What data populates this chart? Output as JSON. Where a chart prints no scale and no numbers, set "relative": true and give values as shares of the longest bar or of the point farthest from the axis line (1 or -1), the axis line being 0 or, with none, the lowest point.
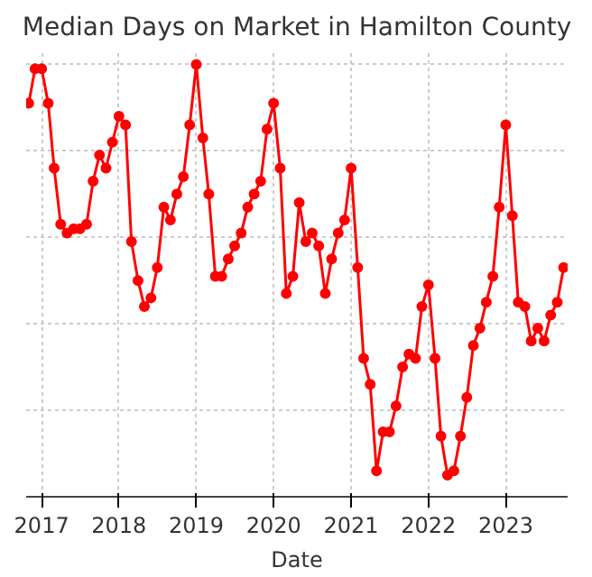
{
  "chart_data": {
    "type": "line",
    "title": "Median Days on Market in Hamilton County",
    "xlabel": "Date",
    "relative": true,
    "x": [
      "2016-11",
      "2016-12",
      "2017-01",
      "2017-02",
      "2017-03",
      "2017-04",
      "2017-05",
      "2017-06",
      "2017-07",
      "2017-08",
      "2017-09",
      "2017-10",
      "2017-11",
      "2017-12",
      "2018-01",
      "2018-02",
      "2018-03",
      "2018-04",
      "2018-05",
      "2018-06",
      "2018-07",
      "2018-08",
      "2018-09",
      "2018-10",
      "2018-11",
      "2018-12",
      "2019-01",
      "2019-02",
      "2019-03",
      "2019-04",
      "2019-05",
      "2019-06",
      "2019-07",
      "2019-08",
      "2019-09",
      "2019-10",
      "2019-11",
      "2019-12",
      "2020-01",
      "2020-02",
      "2020-03",
      "2020-04",
      "2020-05",
      "2020-06",
      "2020-07",
      "2020-08",
      "2020-09",
      "2020-10",
      "2020-11",
      "2020-12",
      "2021-01",
      "2021-02",
      "2021-03",
      "2021-04",
      "2021-05",
      "2021-06",
      "2021-07",
      "2021-08",
      "2021-09",
      "2021-10",
      "2021-11",
      "2021-12",
      "2022-01",
      "2022-02",
      "2022-03",
      "2022-04",
      "2022-05",
      "2022-06",
      "2022-07",
      "2022-08",
      "2022-09",
      "2022-10",
      "2022-11",
      "2022-12",
      "2023-01",
      "2023-02",
      "2023-03",
      "2023-04",
      "2023-05",
      "2023-06",
      "2023-07",
      "2023-08",
      "2023-09",
      "2023-10"
    ],
    "series": [
      {
        "color": "#ff0000",
        "values": [
          0.91,
          0.99,
          0.99,
          0.91,
          0.76,
          0.63,
          0.61,
          0.62,
          0.62,
          0.63,
          0.73,
          0.79,
          0.76,
          0.82,
          0.88,
          0.86,
          0.59,
          0.5,
          0.44,
          0.46,
          0.53,
          0.67,
          0.64,
          0.7,
          0.74,
          0.86,
          1,
          0.83,
          0.7,
          0.51,
          0.51,
          0.55,
          0.58,
          0.61,
          0.67,
          0.7,
          0.73,
          0.85,
          0.91,
          0.76,
          0.47,
          0.51,
          0.68,
          0.59,
          0.61,
          0.58,
          0.47,
          0.55,
          0.61,
          0.64,
          0.76,
          0.53,
          0.32,
          0.26,
          0.06,
          0.15,
          0.15,
          0.21,
          0.3,
          0.33,
          0.32,
          0.44,
          0.49,
          0.32,
          0.14,
          0.05,
          0.06,
          0.14,
          0.23,
          0.35,
          0.39,
          0.45,
          0.51,
          0.67,
          0.86,
          0.65,
          0.45,
          0.44,
          0.36,
          0.39,
          0.36,
          0.42,
          0.45,
          0.53
        ]
      }
    ],
    "xlim": [
      "2016-10-20",
      "2023-10-20"
    ],
    "xticks": [
      {
        "value": "2017-01-01",
        "label": "2017"
      },
      {
        "value": "2018-01-01",
        "label": "2018"
      },
      {
        "value": "2019-01-01",
        "label": "2019"
      },
      {
        "value": "2020-01-01",
        "label": "2020"
      },
      {
        "value": "2021-01-01",
        "label": "2021"
      },
      {
        "value": "2022-01-01",
        "label": "2022"
      },
      {
        "value": "2023-01-01",
        "label": "2023"
      }
    ],
    "grid": true,
    "marker": "circle",
    "line_style": "solid"
  }
}
